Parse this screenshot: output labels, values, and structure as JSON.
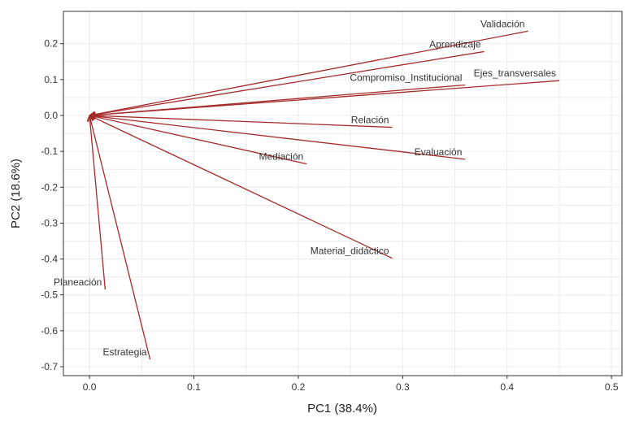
{
  "chart_data": {
    "type": "scatter",
    "subtype": "pca-loadings-biplot",
    "title": "",
    "xlabel": "PC1 (38.4%)",
    "ylabel": "PC2 (18.6%)",
    "xlim": [
      -0.025,
      0.51
    ],
    "ylim": [
      -0.725,
      0.29
    ],
    "x_ticks": [
      0.0,
      0.1,
      0.2,
      0.3,
      0.4,
      0.5
    ],
    "x_tick_labels": [
      "0.0",
      "0.1",
      "0.2",
      "0.3",
      "0.4",
      "0.5"
    ],
    "y_ticks": [
      0.2,
      0.1,
      0.0,
      -0.1,
      -0.2,
      -0.3,
      -0.4,
      -0.5,
      -0.6,
      -0.7
    ],
    "y_tick_labels": [
      "0.2",
      "0.1",
      "0.0",
      "-0.1",
      "-0.2",
      "-0.3",
      "-0.4",
      "-0.5",
      "-0.6",
      "-0.7"
    ],
    "grid": true,
    "arrow_color": "#a52a2a",
    "origin": [
      0,
      0
    ],
    "points": [
      {
        "label": "Validación",
        "x": 0.42,
        "y": 0.235
      },
      {
        "label": "Aprendizaje",
        "x": 0.378,
        "y": 0.178
      },
      {
        "label": "Ejes_transversales",
        "x": 0.45,
        "y": 0.097
      },
      {
        "label": "Compromiso_Institucional",
        "x": 0.36,
        "y": 0.085
      },
      {
        "label": "Relación",
        "x": 0.29,
        "y": -0.033
      },
      {
        "label": "Evaluación",
        "x": 0.36,
        "y": -0.122
      },
      {
        "label": "Mediación",
        "x": 0.208,
        "y": -0.135
      },
      {
        "label": "Material_didáctico",
        "x": 0.29,
        "y": -0.398
      },
      {
        "label": "Planeación",
        "x": 0.015,
        "y": -0.485
      },
      {
        "label": "Estrategia",
        "x": 0.058,
        "y": -0.68
      }
    ]
  }
}
